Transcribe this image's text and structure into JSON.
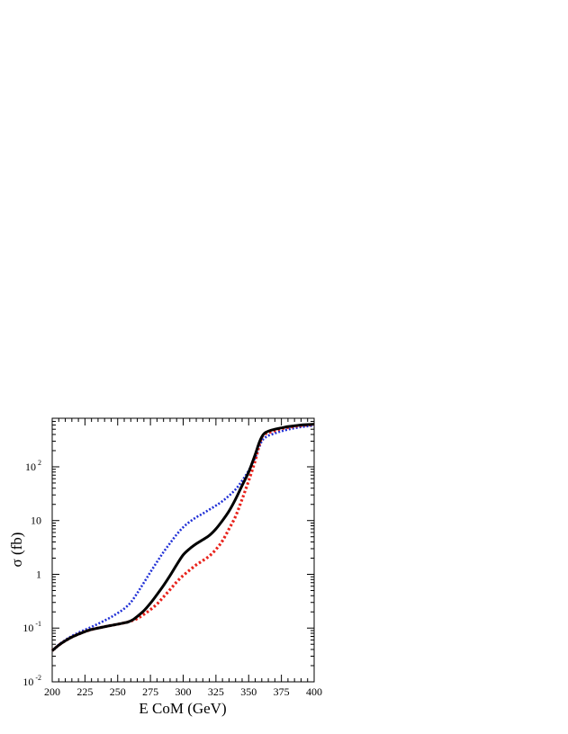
{
  "chart_data": {
    "type": "line",
    "xlabel": "E CoM (GeV)",
    "ylabel": "σ (fb)",
    "xlim": [
      200,
      400
    ],
    "ylim": [
      0.01,
      800
    ],
    "yscale": "log",
    "grid": false,
    "x_ticks": [
      {
        "value": 200,
        "label": "200"
      },
      {
        "value": 225,
        "label": "225"
      },
      {
        "value": 250,
        "label": "250"
      },
      {
        "value": 275,
        "label": "275"
      },
      {
        "value": 300,
        "label": "300"
      },
      {
        "value": 325,
        "label": "325"
      },
      {
        "value": 350,
        "label": "350"
      },
      {
        "value": 375,
        "label": "375"
      },
      {
        "value": 400,
        "label": "400"
      }
    ],
    "y_ticks": [
      {
        "value": 0.01,
        "base": "10",
        "exp": "-2"
      },
      {
        "value": 0.1,
        "base": "10",
        "exp": "-1"
      },
      {
        "value": 1,
        "base": "1",
        "exp": ""
      },
      {
        "value": 10,
        "base": "10",
        "exp": ""
      },
      {
        "value": 100,
        "base": "10",
        "exp": "2"
      }
    ],
    "series": [
      {
        "color": "#000000",
        "style": "solid",
        "x": [
          200,
          205,
          210,
          215,
          220,
          225,
          230,
          235,
          240,
          245,
          250,
          255,
          258,
          262,
          265,
          270,
          275,
          280,
          285,
          290,
          295,
          300,
          305,
          310,
          315,
          320,
          325,
          330,
          335,
          340,
          345,
          350,
          355,
          358,
          360,
          362,
          365,
          370,
          375,
          380,
          385,
          390,
          395,
          400
        ],
        "y": [
          0.038,
          0.048,
          0.058,
          0.068,
          0.077,
          0.086,
          0.094,
          0.1,
          0.106,
          0.112,
          0.118,
          0.125,
          0.13,
          0.145,
          0.165,
          0.21,
          0.29,
          0.42,
          0.62,
          0.95,
          1.5,
          2.3,
          3.0,
          3.7,
          4.4,
          5.3,
          7.0,
          10.0,
          15.0,
          25.0,
          45.0,
          80.0,
          170.0,
          280.0,
          360.0,
          420.0,
          460.0,
          500.0,
          530.0,
          560.0,
          580.0,
          600.0,
          610.0,
          620.0
        ]
      },
      {
        "color": "#e8221b",
        "style": "dotted",
        "x": [
          200,
          205,
          210,
          215,
          220,
          225,
          230,
          235,
          240,
          245,
          250,
          255,
          260,
          265,
          270,
          275,
          280,
          285,
          290,
          295,
          300,
          305,
          310,
          315,
          320,
          325,
          330,
          335,
          340,
          345,
          350,
          355,
          358,
          360,
          362,
          365,
          370,
          375,
          380,
          385,
          390,
          395,
          400
        ],
        "y": [
          0.038,
          0.048,
          0.058,
          0.068,
          0.077,
          0.086,
          0.094,
          0.1,
          0.106,
          0.112,
          0.118,
          0.125,
          0.135,
          0.15,
          0.18,
          0.22,
          0.28,
          0.38,
          0.52,
          0.72,
          0.95,
          1.2,
          1.5,
          1.8,
          2.2,
          2.9,
          4.2,
          7.0,
          12.0,
          25.0,
          55.0,
          130.0,
          250.0,
          350.0,
          400.0,
          430.0,
          470.0,
          510.0,
          540.0,
          565.0,
          585.0,
          600.0,
          615.0
        ]
      },
      {
        "color": "#1f2fd6",
        "style": "dotted",
        "x": [
          200,
          205,
          210,
          215,
          220,
          225,
          230,
          235,
          240,
          245,
          250,
          255,
          260,
          265,
          270,
          275,
          280,
          285,
          290,
          295,
          300,
          305,
          310,
          315,
          320,
          325,
          330,
          335,
          340,
          345,
          350,
          355,
          358,
          360,
          362,
          365,
          370,
          375,
          380,
          385,
          390,
          395,
          400
        ],
        "y": [
          0.038,
          0.049,
          0.06,
          0.071,
          0.082,
          0.093,
          0.105,
          0.12,
          0.138,
          0.16,
          0.19,
          0.23,
          0.3,
          0.45,
          0.7,
          1.1,
          1.7,
          2.6,
          3.8,
          5.5,
          7.5,
          9.5,
          11.5,
          13.5,
          16.0,
          19.0,
          23.0,
          29.0,
          38.0,
          55.0,
          85.0,
          150.0,
          230.0,
          300.0,
          340.0,
          380.0,
          420.0,
          460.0,
          495.0,
          525.0,
          550.0,
          570.0,
          590.0
        ]
      }
    ]
  }
}
